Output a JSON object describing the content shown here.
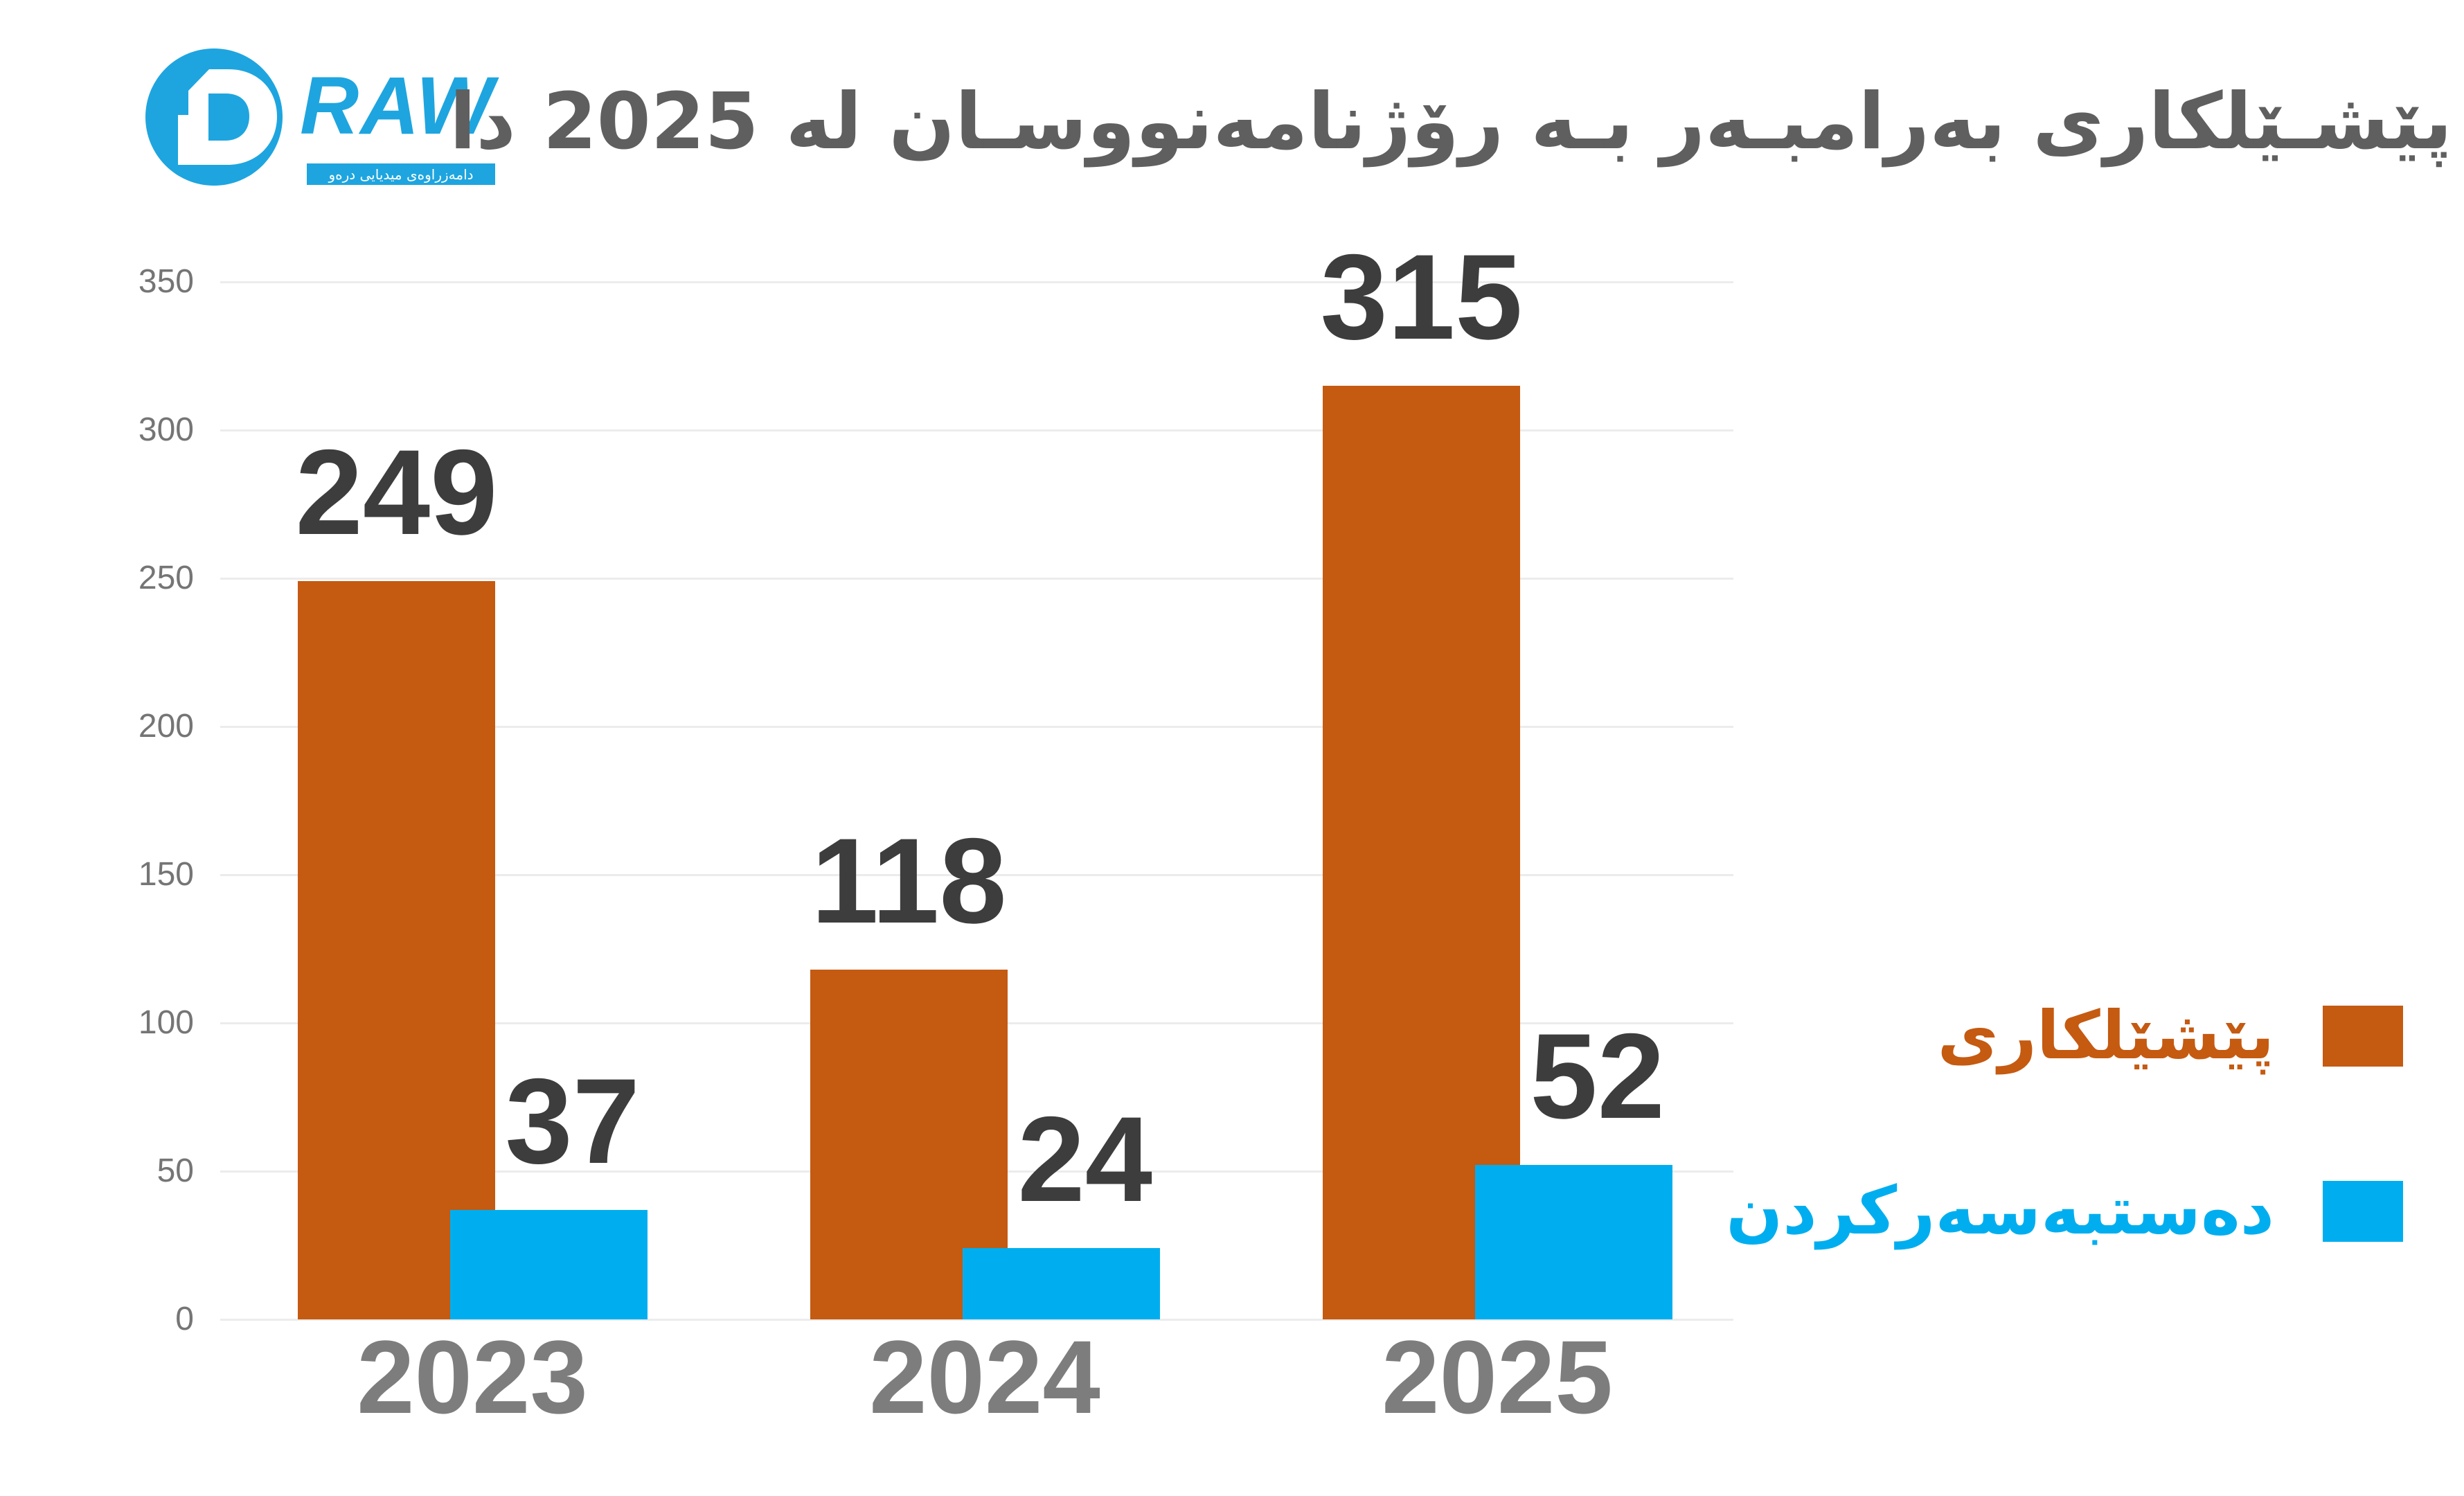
{
  "logo": {
    "brand": "RAW",
    "d_letter": "D",
    "tagline": "دامەزراوەی میدیایی درەو"
  },
  "title": "پێشـێلکاری بەرامبـەر بـە رۆژنامەنووسـان لە 2025 دا",
  "legend": [
    {
      "label": "پێشێلکاری",
      "color": "#C55A11"
    },
    {
      "label": "دەستبەسەرکردن",
      "color": "#00AEEF"
    }
  ],
  "chart_data": {
    "type": "bar",
    "title": "پێشێلکاری بەرامبەر بە رۆژنامەنووسان لە 2025 دا",
    "categories": [
      "2023",
      "2024",
      "2025"
    ],
    "series": [
      {
        "name": "پێشێلکاری",
        "color": "#C55A11",
        "values": [
          249,
          118,
          315
        ]
      },
      {
        "name": "دەستبەسەرکردن",
        "color": "#00AEEF",
        "values": [
          37,
          24,
          52
        ]
      }
    ],
    "ylim": [
      0,
      350
    ],
    "ytick_step": 50,
    "yticks": [
      0,
      50,
      100,
      150,
      200,
      250,
      300,
      350
    ],
    "grid": true,
    "value_labels": true,
    "legend_position": "right",
    "xlabel": "",
    "ylabel": ""
  },
  "colors": {
    "background": "#FFFFFF",
    "title_text": "#5F5F5F",
    "value_label": "#3D3D3D",
    "year_label": "#7D7D7D",
    "ytick_label": "#757575",
    "gridline": "#ECECEC",
    "logo_blue": "#1EA5DF",
    "series_orange": "#C55A11",
    "series_blue": "#00AEEF"
  }
}
